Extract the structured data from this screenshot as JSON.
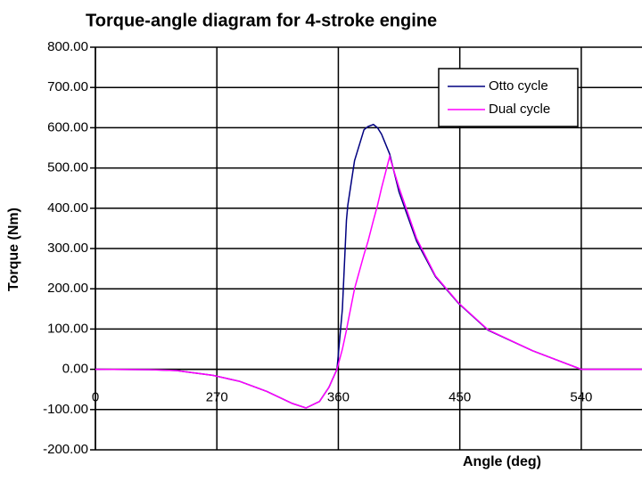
{
  "chart_data": {
    "type": "line",
    "title": "Torque-angle diagram for 4-stroke engine",
    "x_label": "Angle (deg)",
    "y_label": "Torque (Nm)",
    "x": [
      180,
      220,
      240,
      267,
      287,
      307,
      326,
      336,
      346,
      353,
      359,
      363,
      366,
      367,
      372,
      379,
      382,
      386,
      389,
      392,
      398,
      405,
      418,
      432,
      449,
      471,
      504,
      540,
      585
    ],
    "series": [
      {
        "name": "Otto cycle",
        "color": "#000080",
        "values": [
          0,
          -1,
          -3,
          -15,
          -30,
          -55,
          -85,
          -96,
          -80,
          -45,
          0,
          150,
          370,
          407,
          518,
          595,
          603,
          608,
          600,
          584,
          535,
          440,
          318,
          230,
          164,
          97,
          46,
          0,
          0
        ]
      },
      {
        "name": "Dual cycle",
        "color": "#ff00ff",
        "values": [
          0,
          -1,
          -3,
          -15,
          -30,
          -55,
          -85,
          -96,
          -80,
          -45,
          0,
          50,
          97,
          115,
          200,
          285,
          318,
          370,
          407,
          450,
          528,
          451,
          325,
          232,
          165,
          98,
          46,
          0,
          0
        ]
      }
    ],
    "xlim": [
      180,
      585
    ],
    "ylim": [
      -200,
      800
    ],
    "xticks": [
      {
        "value": 180,
        "label": "0"
      },
      270,
      360,
      450,
      540
    ],
    "yticks": [
      {
        "value": -200,
        "label": "-200.00"
      },
      {
        "value": -100,
        "label": "-100.00"
      },
      {
        "value": 0,
        "label": "0.00"
      },
      {
        "value": 100,
        "label": "100.00"
      },
      {
        "value": 200,
        "label": "200.00"
      },
      {
        "value": 300,
        "label": "300.00"
      },
      {
        "value": 400,
        "label": "400.00"
      },
      {
        "value": 500,
        "label": "500.00"
      },
      {
        "value": 600,
        "label": "600.00"
      },
      {
        "value": 700,
        "label": "700.00"
      },
      {
        "value": 800,
        "label": "800.00"
      }
    ],
    "grid": true,
    "legend": "upper right"
  }
}
